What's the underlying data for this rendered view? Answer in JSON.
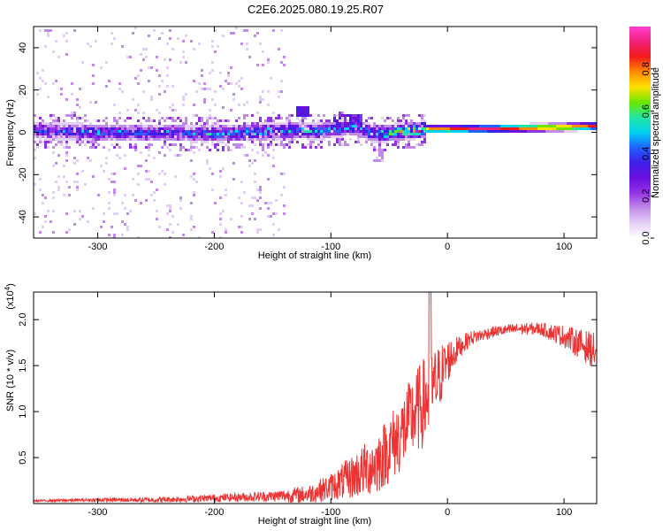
{
  "title": "C2E6.2025.080.19.25.R07",
  "chart_data": [
    {
      "type": "heatmap",
      "xlabel": "Height of straight line (km)",
      "ylabel": "Frequency (Hz)",
      "xlim": [
        -355,
        128
      ],
      "ylim": [
        -50,
        50
      ],
      "x_ticks": [
        -300,
        -200,
        -100,
        0,
        100
      ],
      "y_ticks": [
        -40,
        -20,
        0,
        20,
        40
      ],
      "colorbar": {
        "label": "Normalized spectral amplitude",
        "range": [
          0,
          1
        ],
        "ticks": [
          "0.0",
          "0.2",
          "0.4",
          "0.6",
          "0.8"
        ],
        "tick_values": [
          0.0,
          0.2,
          0.4,
          0.6,
          0.8
        ]
      },
      "ridge": {
        "x": [
          -355,
          -300,
          -250,
          -200,
          -150,
          -130,
          -110,
          -100,
          -80,
          -65,
          -55,
          -40,
          -20,
          0,
          50,
          100,
          128
        ],
        "frequency": [
          1.5,
          0.5,
          0.5,
          0.0,
          1.0,
          1.5,
          1.0,
          2.0,
          3.0,
          0.0,
          0.0,
          1.0,
          2.0,
          2.0,
          2.5,
          3.0,
          3.5
        ],
        "peak_amplitude": [
          0.4,
          0.45,
          0.45,
          0.5,
          0.55,
          0.55,
          0.5,
          0.5,
          0.5,
          0.55,
          0.6,
          0.7,
          0.85,
          0.95,
          0.95,
          0.95,
          0.9
        ]
      },
      "colors": [
        "#ffffff",
        "#e3cff5",
        "#c08ae8",
        "#9333e6",
        "#6a11e0",
        "#3f1ee8",
        "#1e63ff",
        "#00d2f0",
        "#23e6a0",
        "#6ce600",
        "#ffe100",
        "#ff8a00",
        "#f21b1b",
        "#f2207a",
        "#ff40d0"
      ]
    },
    {
      "type": "line",
      "xlabel": "Height of straight line (km)",
      "ylabel": "SNR (10 * v/v)",
      "y_multiplier": "(x10",
      "y_multiplier_exp": "4",
      "xlim": [
        -355,
        128
      ],
      "ylim": [
        0,
        2.3
      ],
      "x_ticks": [
        -300,
        -200,
        -100,
        0,
        100
      ],
      "y_ticks": [
        0.5,
        1.0,
        1.5,
        2.0
      ],
      "color": "#ee3333",
      "envelope": {
        "x": [
          -355,
          -300,
          -250,
          -200,
          -150,
          -120,
          -100,
          -80,
          -60,
          -50,
          -40,
          -30,
          -20,
          -10,
          0,
          10,
          20,
          40,
          60,
          80,
          100,
          120,
          128
        ],
        "y": [
          0.03,
          0.04,
          0.04,
          0.06,
          0.08,
          0.1,
          0.18,
          0.3,
          0.45,
          0.6,
          0.75,
          0.95,
          1.1,
          1.3,
          1.55,
          1.7,
          1.8,
          1.87,
          1.9,
          1.9,
          1.82,
          1.7,
          1.65
        ],
        "noise": [
          0.01,
          0.02,
          0.03,
          0.04,
          0.06,
          0.1,
          0.15,
          0.25,
          0.35,
          0.38,
          0.42,
          0.45,
          0.5,
          0.4,
          0.25,
          0.12,
          0.08,
          0.06,
          0.06,
          0.07,
          0.12,
          0.18,
          0.2
        ]
      }
    }
  ]
}
